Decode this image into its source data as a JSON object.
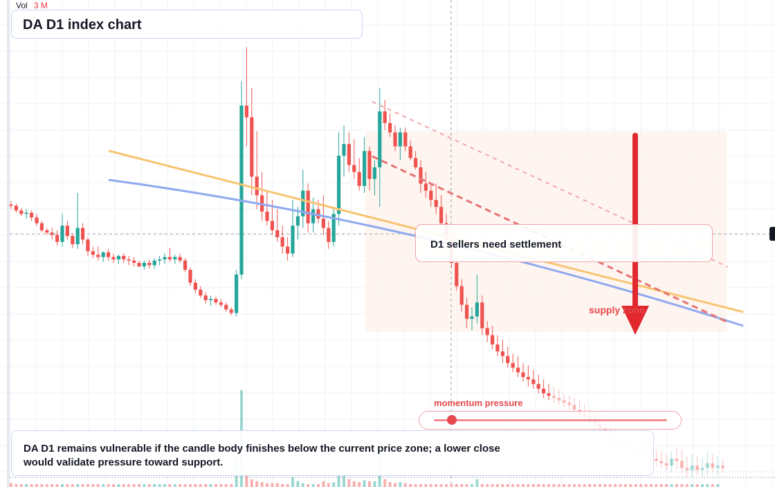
{
  "volume": {
    "label": "Vol",
    "value": "3 M"
  },
  "title": "DA D1 index chart",
  "callout": "D1 sellers need settlement",
  "supply_label": "supply zone",
  "momentum": {
    "label": "momentum pressure",
    "level": 0.07
  },
  "note": "DA D1 remains vulnerable if the candle body finishes below the current price zone; a lower close would validate pressure toward support.",
  "colors": {
    "up": "#26a69a",
    "down": "#ef5350",
    "trend_orange": "#f8c471",
    "trend_blue": "#8fa9f0",
    "arrow": "#e0282e",
    "zone": "#fdf1ea"
  },
  "chart_data": {
    "type": "candlestick",
    "title": "DA D1 index chart",
    "candles": [
      [
        100,
        103,
        96,
        99
      ],
      [
        99,
        101,
        93,
        95
      ],
      [
        95,
        97,
        90,
        92
      ],
      [
        92,
        96,
        88,
        93
      ],
      [
        93,
        95,
        86,
        89
      ],
      [
        89,
        92,
        82,
        84
      ],
      [
        84,
        86,
        76,
        78
      ],
      [
        78,
        80,
        74,
        76
      ],
      [
        76,
        80,
        70,
        74
      ],
      [
        74,
        78,
        65,
        68
      ],
      [
        68,
        92,
        64,
        82
      ],
      [
        82,
        86,
        70,
        73
      ],
      [
        73,
        75,
        63,
        66
      ],
      [
        66,
        110,
        62,
        80
      ],
      [
        80,
        84,
        66,
        70
      ],
      [
        70,
        72,
        56,
        60
      ],
      [
        60,
        64,
        54,
        57
      ],
      [
        57,
        64,
        52,
        55
      ],
      [
        55,
        60,
        51,
        59
      ],
      [
        59,
        62,
        52,
        55
      ],
      [
        55,
        58,
        50,
        53
      ],
      [
        53,
        57,
        49,
        56
      ],
      [
        56,
        58,
        50,
        53
      ],
      [
        53,
        56,
        48,
        52
      ],
      [
        52,
        55,
        47,
        50
      ],
      [
        50,
        52,
        46,
        47
      ],
      [
        47,
        52,
        44,
        50
      ],
      [
        50,
        53,
        45,
        48
      ],
      [
        48,
        54,
        45,
        52
      ],
      [
        52,
        56,
        48,
        53
      ],
      [
        53,
        58,
        49,
        55
      ],
      [
        55,
        63,
        51,
        53
      ],
      [
        53,
        57,
        49,
        55
      ],
      [
        55,
        58,
        50,
        52
      ],
      [
        52,
        54,
        42,
        44
      ],
      [
        44,
        46,
        30,
        33
      ],
      [
        33,
        36,
        24,
        27
      ],
      [
        27,
        30,
        20,
        22
      ],
      [
        22,
        25,
        15,
        18
      ],
      [
        18,
        22,
        13,
        19
      ],
      [
        19,
        21,
        14,
        16
      ],
      [
        16,
        19,
        12,
        14
      ],
      [
        14,
        16,
        8,
        10
      ],
      [
        10,
        12,
        5,
        7
      ],
      [
        7,
        44,
        4,
        40
      ],
      [
        40,
        206,
        36,
        185
      ],
      [
        185,
        235,
        150,
        175
      ],
      [
        175,
        200,
        108,
        124
      ],
      [
        124,
        163,
        96,
        108
      ],
      [
        108,
        128,
        86,
        94
      ],
      [
        94,
        112,
        82,
        86
      ],
      [
        86,
        104,
        74,
        78
      ],
      [
        78,
        96,
        68,
        72
      ],
      [
        72,
        82,
        58,
        64
      ],
      [
        64,
        72,
        52,
        58
      ],
      [
        58,
        104,
        55,
        82
      ],
      [
        82,
        98,
        70,
        90
      ],
      [
        90,
        130,
        80,
        112
      ],
      [
        112,
        118,
        76,
        84
      ],
      [
        84,
        106,
        76,
        96
      ],
      [
        96,
        104,
        84,
        88
      ],
      [
        88,
        108,
        74,
        80
      ],
      [
        80,
        86,
        62,
        68
      ],
      [
        68,
        98,
        64,
        92
      ],
      [
        92,
        162,
        82,
        142
      ],
      [
        142,
        168,
        124,
        152
      ],
      [
        152,
        162,
        128,
        134
      ],
      [
        134,
        156,
        122,
        128
      ],
      [
        128,
        140,
        112,
        116
      ],
      [
        116,
        158,
        110,
        146
      ],
      [
        146,
        150,
        112,
        122
      ],
      [
        122,
        138,
        108,
        132
      ],
      [
        132,
        200,
        98,
        180
      ],
      [
        180,
        190,
        164,
        170
      ],
      [
        170,
        178,
        158,
        162
      ],
      [
        162,
        168,
        146,
        150
      ],
      [
        150,
        166,
        138,
        162
      ],
      [
        162,
        166,
        146,
        150
      ],
      [
        150,
        155,
        138,
        140
      ],
      [
        140,
        146,
        130,
        132
      ],
      [
        132,
        138,
        110,
        118
      ],
      [
        118,
        128,
        106,
        112
      ],
      [
        112,
        118,
        98,
        104
      ],
      [
        104,
        118,
        92,
        98
      ],
      [
        98,
        108,
        76,
        84
      ],
      [
        84,
        92,
        62,
        70
      ],
      [
        70,
        76,
        46,
        50
      ],
      [
        50,
        56,
        26,
        30
      ],
      [
        30,
        36,
        8,
        14
      ],
      [
        14,
        20,
        -6,
        2
      ],
      [
        2,
        12,
        -8,
        4
      ],
      [
        4,
        40,
        -2,
        16
      ],
      [
        16,
        22,
        -12,
        -6
      ],
      [
        -6,
        0,
        -18,
        -12
      ],
      [
        -12,
        -4,
        -24,
        -20
      ],
      [
        -20,
        -12,
        -30,
        -26
      ],
      [
        -26,
        -16,
        -36,
        -30
      ],
      [
        -30,
        -22,
        -40,
        -36
      ],
      [
        -36,
        -28,
        -44,
        -40
      ],
      [
        -40,
        -30,
        -48,
        -44
      ],
      [
        -44,
        -36,
        -52,
        -48
      ],
      [
        -48,
        -38,
        -56,
        -50
      ],
      [
        -50,
        -42,
        -58,
        -54
      ],
      [
        -54,
        -46,
        -62,
        -58
      ],
      [
        -58,
        -50,
        -66,
        -62
      ],
      [
        -62,
        -54,
        -68,
        -64
      ],
      [
        -64,
        -56,
        -70,
        -66
      ],
      [
        -66,
        -58,
        -72,
        -68
      ],
      [
        -68,
        -62,
        -74,
        -70
      ],
      [
        -70,
        -64,
        -76,
        -72
      ],
      [
        -72,
        -66,
        -80,
        -76
      ],
      [
        -76,
        -68,
        -84,
        -80
      ],
      [
        -80,
        -72,
        -86,
        -82
      ],
      [
        -82,
        -76,
        -88,
        -84
      ],
      [
        -84,
        -78,
        -92,
        -88
      ],
      [
        -88,
        -80,
        -96,
        -92
      ],
      [
        -92,
        -84,
        -100,
        -96
      ],
      [
        -96,
        -88,
        -104,
        -100
      ],
      [
        -100,
        -92,
        -108,
        -104
      ],
      [
        -104,
        -96,
        -110,
        -106
      ],
      [
        -106,
        -98,
        -112,
        -108
      ],
      [
        -108,
        -100,
        -114,
        -110
      ],
      [
        -110,
        -102,
        -116,
        -112
      ],
      [
        -112,
        -104,
        -118,
        -114
      ],
      [
        -114,
        -106,
        -120,
        -116
      ],
      [
        -116,
        -108,
        -122,
        -118
      ],
      [
        -118,
        -110,
        -124,
        -120
      ],
      [
        -120,
        -112,
        -126,
        -122
      ],
      [
        -122,
        -114,
        -128,
        -124
      ],
      [
        -124,
        -112,
        -130,
        -118
      ],
      [
        -118,
        -108,
        -128,
        -120
      ],
      [
        -120,
        -110,
        -130,
        -126
      ],
      [
        -126,
        -116,
        -134,
        -128
      ],
      [
        -128,
        -114,
        -134,
        -124
      ],
      [
        -124,
        -116,
        -132,
        -128
      ],
      [
        -128,
        -118,
        -134,
        -126
      ],
      [
        -126,
        -112,
        -132,
        -122
      ],
      [
        -122,
        -114,
        -130,
        -126
      ],
      [
        -126,
        -116,
        -132,
        -124
      ],
      [
        -124,
        -118,
        -130,
        -126
      ]
    ],
    "volume": [
      4,
      3,
      3,
      3,
      3,
      3,
      3,
      3,
      3,
      3,
      3,
      3,
      3,
      3,
      3,
      3,
      3,
      3,
      3,
      3,
      3,
      3,
      3,
      3,
      3,
      3,
      3,
      3,
      3,
      3,
      3,
      3,
      3,
      3,
      3,
      3,
      3,
      3,
      3,
      3,
      3,
      3,
      3,
      3,
      30,
      100,
      14,
      8,
      6,
      5,
      4,
      4,
      4,
      3,
      3,
      10,
      6,
      4,
      3,
      3,
      3,
      6,
      4,
      5,
      14,
      12,
      8,
      6,
      5,
      7,
      6,
      6,
      40,
      8,
      5,
      4,
      5,
      4,
      3,
      3,
      3,
      3,
      3,
      3,
      3,
      3,
      3,
      3,
      3,
      3,
      3,
      8,
      3,
      3,
      3,
      3,
      3,
      3,
      3,
      3,
      3,
      3,
      3,
      3,
      3,
      3,
      3,
      3,
      3,
      3,
      3,
      3,
      3,
      3,
      3,
      3,
      3,
      3,
      3,
      3,
      3,
      3,
      3,
      3,
      3,
      3,
      3,
      3,
      3,
      3,
      3,
      3,
      3,
      3,
      3,
      3,
      3,
      3,
      3
    ],
    "trendlines": [
      {
        "color": "orange",
        "from": [
          5,
          93
        ],
        "to": [
          40,
          -26
        ]
      },
      {
        "color": "blue",
        "from": [
          5,
          82
        ],
        "to": [
          40,
          -32
        ]
      }
    ],
    "grid": true
  }
}
